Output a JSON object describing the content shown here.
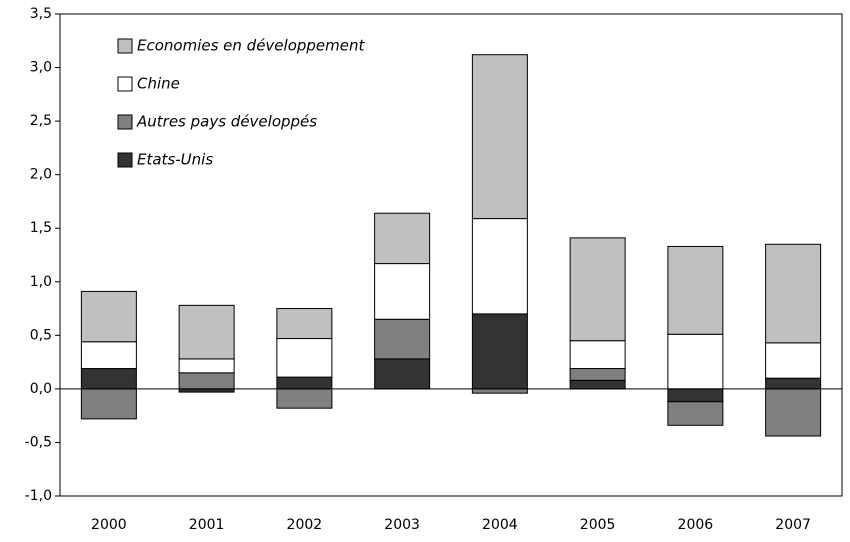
{
  "chart_data": {
    "type": "stacked_bar",
    "categories": [
      "2000",
      "2001",
      "2002",
      "2003",
      "2004",
      "2005",
      "2006",
      "2007"
    ],
    "series": [
      {
        "name": "Economies en développement",
        "color": "#c0c0c0",
        "values": [
          0.47,
          0.5,
          0.28,
          0.47,
          1.53,
          0.96,
          0.82,
          0.92
        ]
      },
      {
        "name": "Chine",
        "color": "#ffffff",
        "values": [
          0.25,
          0.13,
          0.36,
          0.52,
          0.89,
          0.26,
          0.51,
          0.33
        ]
      },
      {
        "name": "Autres pays développés",
        "color": "#808080",
        "values": [
          -0.28,
          0.15,
          -0.18,
          0.37,
          -0.04,
          0.11,
          -0.22,
          -0.44
        ]
      },
      {
        "name": "Etats-Unis",
        "color": "#333333",
        "values": [
          0.19,
          -0.03,
          0.11,
          0.28,
          0.7,
          0.08,
          -0.12,
          0.1
        ]
      }
    ],
    "ylim": [
      -1.0,
      3.5
    ],
    "yticks": [
      {
        "value": -1.0,
        "label": "-1,0"
      },
      {
        "value": -0.5,
        "label": "-0,5"
      },
      {
        "value": 0,
        "label": "0,0"
      },
      {
        "value": 0.5,
        "label": "0,5"
      },
      {
        "value": 1.0,
        "label": "1,0"
      },
      {
        "value": 1.5,
        "label": "1,5"
      },
      {
        "value": 2.0,
        "label": "2,0"
      },
      {
        "value": 2.5,
        "label": "2,5"
      },
      {
        "value": 3.0,
        "label": "3,0"
      },
      {
        "value": 3.5,
        "label": "3,5"
      }
    ],
    "legend": "upper left"
  }
}
